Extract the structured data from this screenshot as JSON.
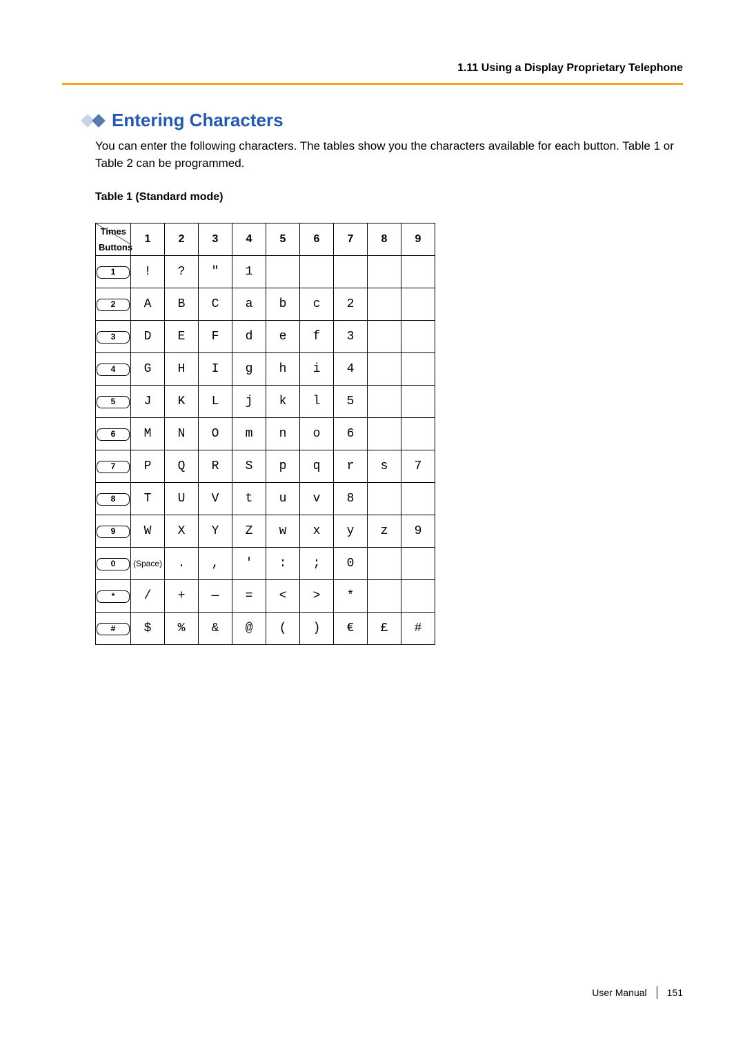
{
  "header": {
    "section": "1.11 Using a Display Proprietary Telephone"
  },
  "title": "Entering Characters",
  "intro": "You can enter the following characters. The tables show you the characters available for each button. Table 1 or Table 2 can be programmed.",
  "table": {
    "caption": "Table 1 (Standard mode)",
    "corner_top": "Times",
    "corner_bottom": "Buttons",
    "columns": [
      "1",
      "2",
      "3",
      "4",
      "5",
      "6",
      "7",
      "8",
      "9"
    ],
    "rows": [
      {
        "button": "1",
        "cells": [
          "!",
          "?",
          "\"",
          "1",
          "",
          "",
          "",
          "",
          ""
        ]
      },
      {
        "button": "2",
        "cells": [
          "A",
          "B",
          "C",
          "a",
          "b",
          "c",
          "2",
          "",
          ""
        ]
      },
      {
        "button": "3",
        "cells": [
          "D",
          "E",
          "F",
          "d",
          "e",
          "f",
          "3",
          "",
          ""
        ]
      },
      {
        "button": "4",
        "cells": [
          "G",
          "H",
          "I",
          "g",
          "h",
          "i",
          "4",
          "",
          ""
        ]
      },
      {
        "button": "5",
        "cells": [
          "J",
          "K",
          "L",
          "j",
          "k",
          "l",
          "5",
          "",
          ""
        ]
      },
      {
        "button": "6",
        "cells": [
          "M",
          "N",
          "O",
          "m",
          "n",
          "o",
          "6",
          "",
          ""
        ]
      },
      {
        "button": "7",
        "cells": [
          "P",
          "Q",
          "R",
          "S",
          "p",
          "q",
          "r",
          "s",
          "7"
        ]
      },
      {
        "button": "8",
        "cells": [
          "T",
          "U",
          "V",
          "t",
          "u",
          "v",
          "8",
          "",
          ""
        ]
      },
      {
        "button": "9",
        "cells": [
          "W",
          "X",
          "Y",
          "Z",
          "w",
          "x",
          "y",
          "z",
          "9"
        ]
      },
      {
        "button": "0",
        "cells": [
          "(Space)",
          ".",
          ",",
          "'",
          ":",
          ";",
          "0",
          "",
          ""
        ],
        "cell_small": [
          0
        ]
      },
      {
        "button": "*",
        "cells": [
          "/",
          "+",
          "—",
          "=",
          "<",
          ">",
          "*",
          "",
          ""
        ]
      },
      {
        "button": "#",
        "cells": [
          "$",
          "%",
          "&",
          "@",
          "(",
          ")",
          "€",
          "£",
          "#"
        ]
      }
    ]
  },
  "footer": {
    "doc": "User Manual",
    "page": "151"
  },
  "colors": {
    "accent_rule": "#f5a623",
    "title": "#2458b3",
    "diamond_light": "#c7d4e6",
    "diamond_dark": "#5a7aa6",
    "border": "#000000",
    "background": "#ffffff"
  }
}
